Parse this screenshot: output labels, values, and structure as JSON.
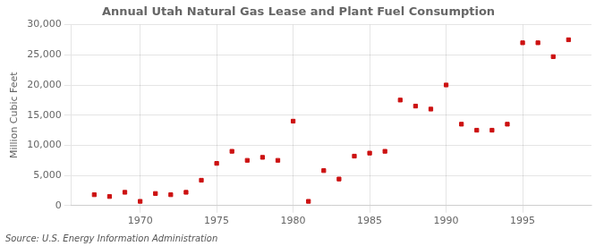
{
  "chart_data": {
    "type": "scatter",
    "title": "Annual Utah Natural Gas Lease and Plant Fuel Consumption",
    "ylabel": "Million Cubic Feet",
    "annotations": [
      "Source: U.S. Energy Information Administration"
    ],
    "x": [
      1967,
      1968,
      1969,
      1970,
      1971,
      1972,
      1973,
      1974,
      1975,
      1976,
      1977,
      1978,
      1979,
      1980,
      1981,
      1982,
      1983,
      1984,
      1985,
      1986,
      1987,
      1988,
      1989,
      1990,
      1991,
      1992,
      1993,
      1994,
      1995,
      1996,
      1997,
      1998
    ],
    "values": [
      1800,
      1500,
      2200,
      700,
      2000,
      1800,
      2200,
      4200,
      7000,
      9000,
      7500,
      8000,
      7500,
      14000,
      700,
      5800,
      4400,
      8200,
      8700,
      9000,
      17500,
      16500,
      16000,
      20000,
      13500,
      12500,
      12500,
      13500,
      27000,
      27000,
      24700,
      27500
    ],
    "color": "#cc1111",
    "marker": "square",
    "xlim": [
      1965.5,
      1999.5
    ],
    "xticks": [
      1970,
      1975,
      1980,
      1985,
      1990,
      1995
    ],
    "ylim": [
      0,
      30000
    ],
    "yticks": [
      0,
      {
        "value": 5000,
        "label": "5,000"
      },
      {
        "value": 10000,
        "label": "10,000"
      },
      {
        "value": 15000,
        "label": "15,000"
      },
      {
        "value": 20000,
        "label": "20,000"
      },
      {
        "value": 25000,
        "label": "25,000"
      },
      {
        "value": 30000,
        "label": "30,000"
      }
    ],
    "grid": true
  }
}
